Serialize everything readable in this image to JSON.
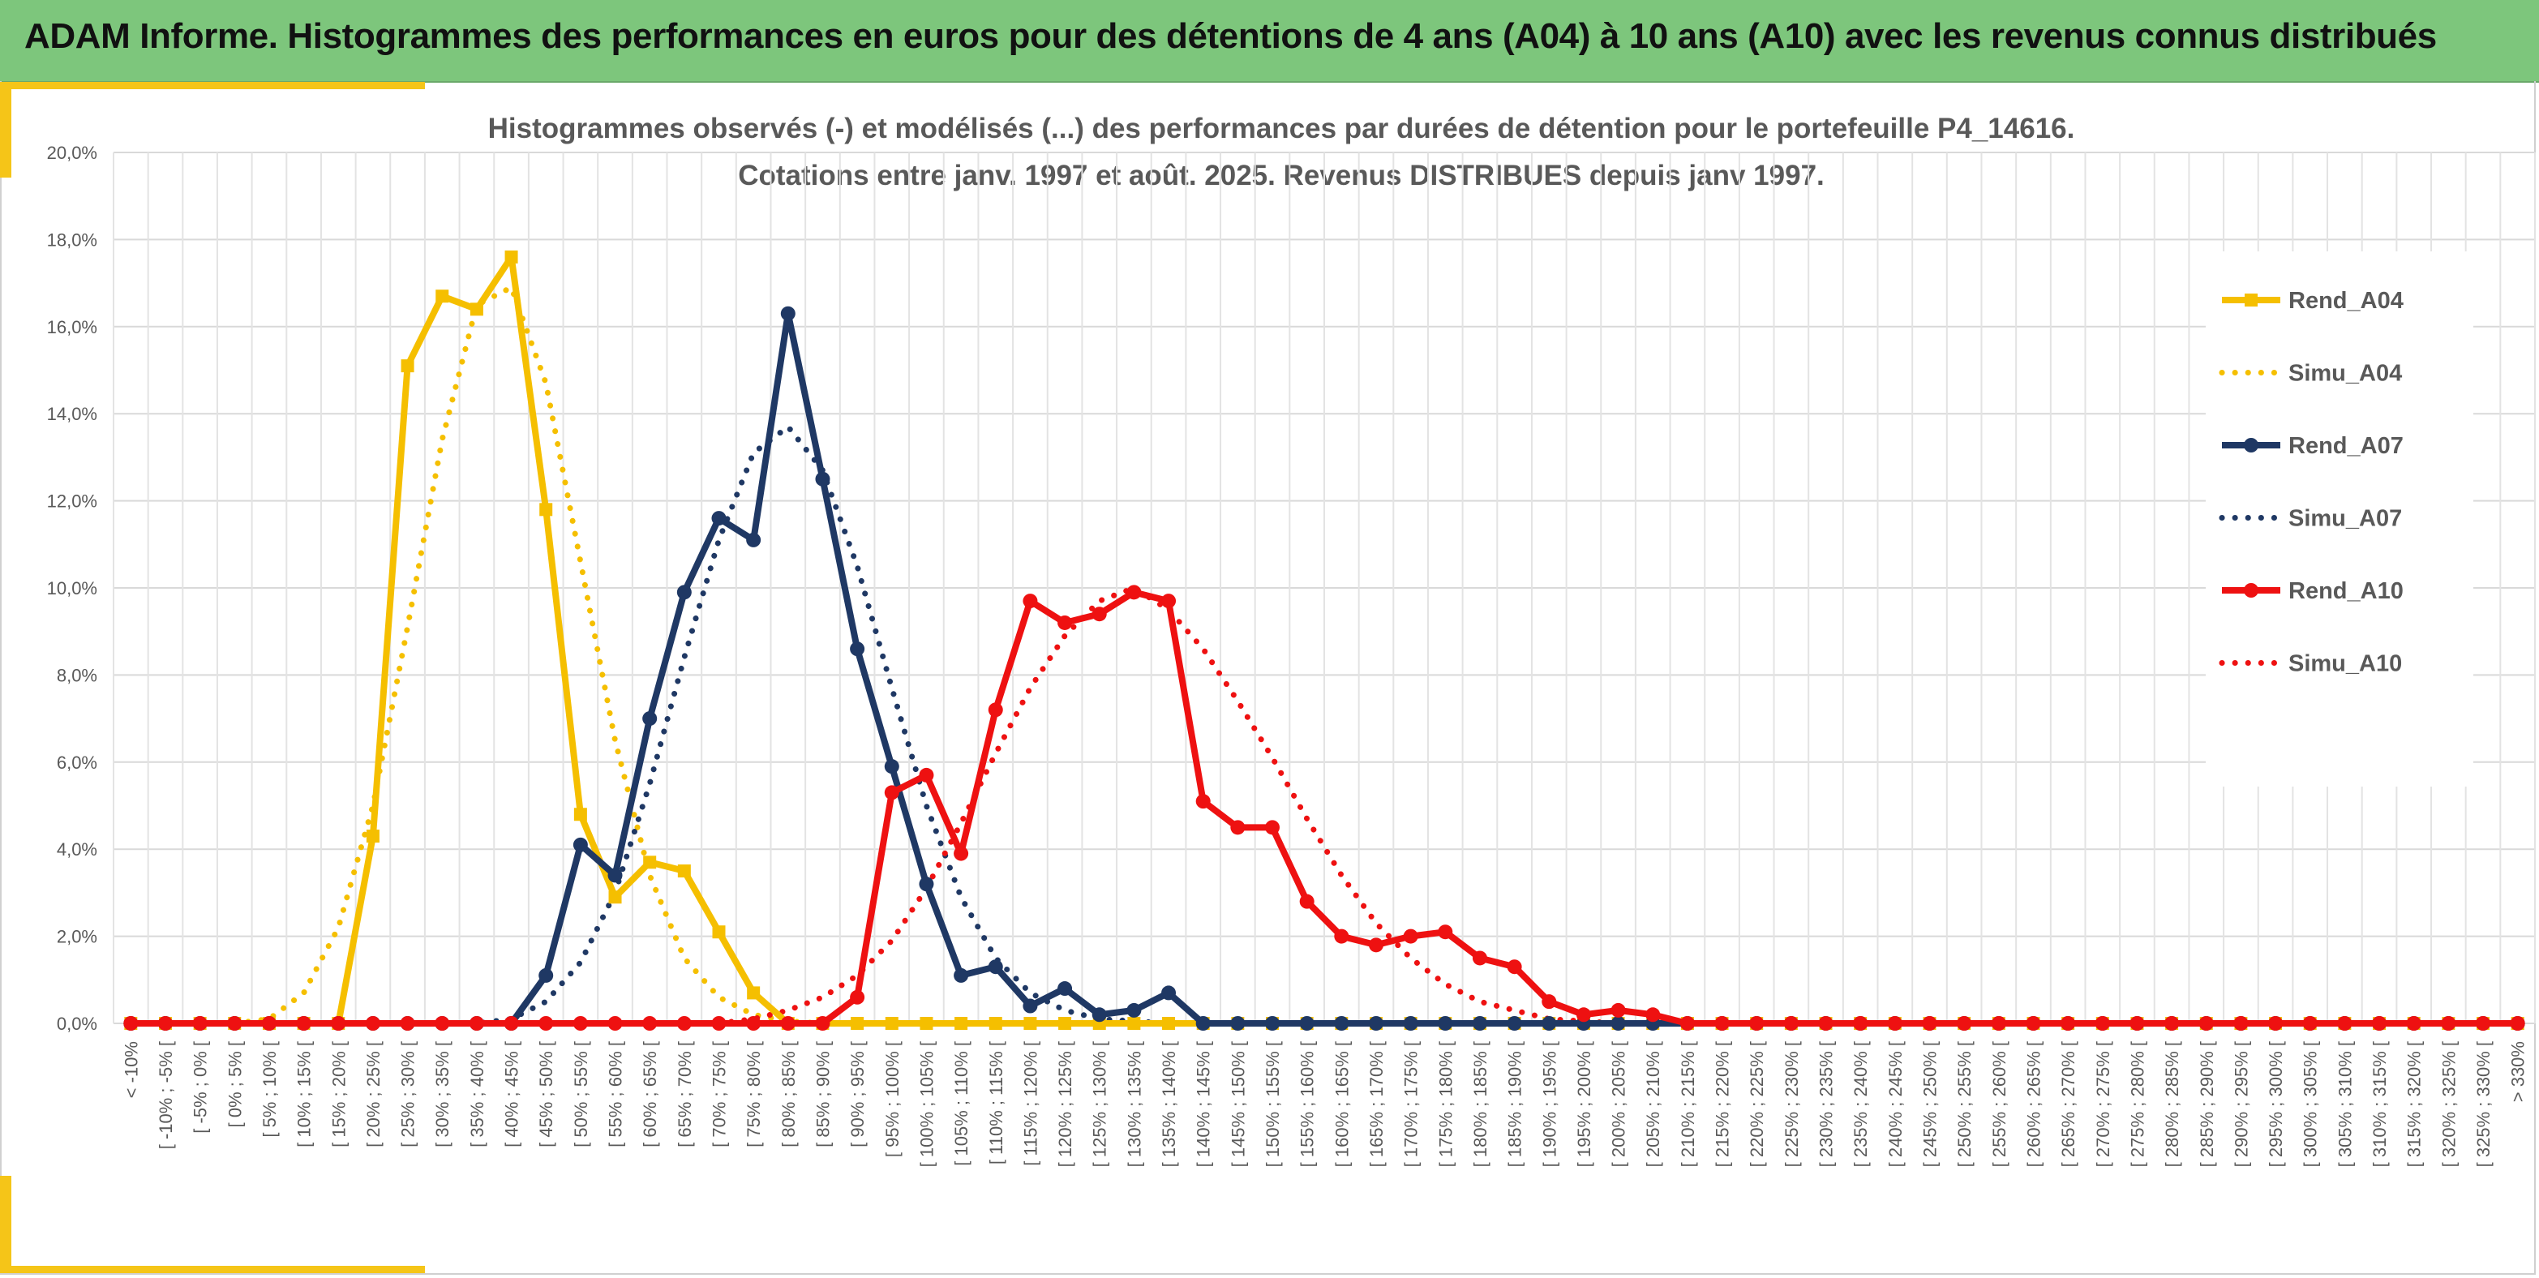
{
  "header": {
    "title": "ADAM Informe. Histogrammes des performances en euros pour des détentions de 4 ans (A04) à 10 ans (A10) avec les revenus connus distribués"
  },
  "colors": {
    "banner": "#7dc67c",
    "accent": "#f5c518",
    "gold": "#f5bf00",
    "navy": "#1f3864",
    "red": "#ee1111"
  },
  "chart_data": {
    "type": "line",
    "title_lines": [
      "Histogrammes observés (-) et modélisés (...) des performances par durées de détention pour le portefeuille P4_14616.",
      "Cotations entre janv. 1997 et août. 2025. Revenus DISTRIBUES depuis janv 1997."
    ],
    "xlabel": "",
    "ylabel": "",
    "ylim": [
      0,
      20
    ],
    "y_ticks": [
      "0,0%",
      "2,0%",
      "4,0%",
      "6,0%",
      "8,0%",
      "10,0%",
      "12,0%",
      "14,0%",
      "16,0%",
      "18,0%",
      "20,0%"
    ],
    "grid": true,
    "legend_position": "right",
    "categories": [
      "< -10%",
      "[ -10% ; -5% [",
      "[ -5% ; 0% [",
      "[ 0% ; 5% [",
      "[ 5% ; 10% [",
      "[ 10% ; 15% [",
      "[ 15% ; 20% [",
      "[ 20% ; 25% [",
      "[ 25% ; 30% [",
      "[ 30% ; 35% [",
      "[ 35% ; 40% [",
      "[ 40% ; 45% [",
      "[ 45% ; 50% [",
      "[ 50% ; 55% [",
      "[ 55% ; 60% [",
      "[ 60% ; 65% [",
      "[ 65% ; 70% [",
      "[ 70% ; 75% [",
      "[ 75% ; 80% [",
      "[ 80% ; 85% [",
      "[ 85% ; 90% [",
      "[ 90% ; 95% [",
      "[ 95% ; 100% [",
      "[ 100% ; 105% [",
      "[ 105% ; 110% [",
      "[ 110% ; 115% [",
      "[ 115% ; 120% [",
      "[ 120% ; 125% [",
      "[ 125% ; 130% [",
      "[ 130% ; 135% [",
      "[ 135% ; 140% [",
      "[ 140% ; 145% [",
      "[ 145% ; 150% [",
      "[ 150% ; 155% [",
      "[ 155% ; 160% [",
      "[ 160% ; 165% [",
      "[ 165% ; 170% [",
      "[ 170% ; 175% [",
      "[ 175% ; 180% [",
      "[ 180% ; 185% [",
      "[ 185% ; 190% [",
      "[ 190% ; 195% [",
      "[ 195% ; 200% [",
      "[ 200% ; 205% [",
      "[ 205% ; 210% [",
      "[ 210% ; 215% [",
      "[ 215% ; 220% [",
      "[ 220% ; 225% [",
      "[ 225% ; 230% [",
      "[ 230% ; 235% [",
      "[ 235% ; 240% [",
      "[ 240% ; 245% [",
      "[ 245% ; 250% [",
      "[ 250% ; 255% [",
      "[ 255% ; 260% [",
      "[ 260% ; 265% [",
      "[ 265% ; 270% [",
      "[ 270% ; 275% [",
      "[ 275% ; 280% [",
      "[ 280% ; 285% [",
      "[ 285% ; 290% [",
      "[ 290% ; 295% [",
      "[ 295% ; 300% [",
      "[ 300% ; 305% [",
      "[ 305% ; 310% [",
      "[ 310% ; 315% [",
      "[ 315% ; 320% [",
      "[ 320% ; 325% [",
      "[ 325% ; 330% [",
      "> 330%"
    ],
    "series": [
      {
        "name": "Rend_A04",
        "style": "solid",
        "marker": "square",
        "color": "#f5bf00",
        "values": [
          0,
          0,
          0,
          0,
          0,
          0,
          0,
          4.3,
          15.1,
          16.7,
          16.4,
          17.6,
          11.8,
          4.8,
          2.9,
          3.7,
          3.5,
          2.1,
          0.7,
          0,
          0,
          0,
          0,
          0,
          0,
          0,
          0,
          0,
          0,
          0,
          0,
          0,
          0,
          0,
          0,
          0,
          0,
          0,
          0,
          0,
          0,
          0,
          0,
          0,
          0,
          0,
          0,
          0,
          0,
          0,
          0,
          0,
          0,
          0,
          0,
          0,
          0,
          0,
          0,
          0,
          0,
          0,
          0,
          0,
          0,
          0,
          0,
          0,
          0,
          0
        ]
      },
      {
        "name": "Simu_A04",
        "style": "dotted",
        "marker": "none",
        "color": "#f5bf00",
        "values": [
          0,
          0,
          0,
          0,
          0.1,
          0.7,
          2.2,
          5.0,
          9.1,
          13.4,
          16.5,
          16.9,
          14.7,
          10.6,
          6.5,
          3.4,
          1.5,
          0.6,
          0.2,
          0.05,
          0,
          0,
          0,
          0,
          0,
          0,
          0,
          0,
          0,
          0,
          0,
          0,
          0,
          0,
          0,
          0,
          0,
          0,
          0,
          0,
          0,
          0,
          0,
          0,
          0,
          0,
          0,
          0,
          0,
          0,
          0,
          0,
          0,
          0,
          0,
          0,
          0,
          0,
          0,
          0,
          0,
          0,
          0,
          0,
          0,
          0,
          0,
          0,
          0,
          0
        ]
      },
      {
        "name": "Rend_A07",
        "style": "solid",
        "marker": "circle",
        "color": "#1f3864",
        "values": [
          0,
          0,
          0,
          0,
          0,
          0,
          0,
          0,
          0,
          0,
          0,
          0,
          1.1,
          4.1,
          3.4,
          7.0,
          9.9,
          11.6,
          11.1,
          16.3,
          12.5,
          8.6,
          5.9,
          3.2,
          1.1,
          1.3,
          0.4,
          0.8,
          0.2,
          0.3,
          0.7,
          0,
          0,
          0,
          0,
          0,
          0,
          0,
          0,
          0,
          0,
          0,
          0,
          0,
          0,
          0,
          0,
          0,
          0,
          0,
          0,
          0,
          0,
          0,
          0,
          0,
          0,
          0,
          0,
          0,
          0,
          0,
          0,
          0,
          0,
          0,
          0,
          0,
          0,
          0
        ]
      },
      {
        "name": "Simu_A07",
        "style": "dotted",
        "marker": "none",
        "color": "#1f3864",
        "values": [
          0,
          0,
          0,
          0,
          0,
          0,
          0,
          0,
          0,
          0,
          0,
          0.1,
          0.5,
          1.4,
          3.0,
          5.5,
          8.4,
          11.1,
          13.1,
          13.7,
          12.7,
          10.5,
          7.7,
          5.0,
          2.9,
          1.5,
          0.7,
          0.3,
          0.1,
          0.05,
          0,
          0,
          0,
          0,
          0,
          0,
          0,
          0,
          0,
          0,
          0,
          0,
          0,
          0,
          0,
          0,
          0,
          0,
          0,
          0,
          0,
          0,
          0,
          0,
          0,
          0,
          0,
          0,
          0,
          0,
          0,
          0,
          0,
          0,
          0,
          0,
          0,
          0,
          0,
          0
        ]
      },
      {
        "name": "Rend_A10",
        "style": "solid",
        "marker": "circle",
        "color": "#ee1111",
        "values": [
          0,
          0,
          0,
          0,
          0,
          0,
          0,
          0,
          0,
          0,
          0,
          0,
          0,
          0,
          0,
          0,
          0,
          0,
          0,
          0,
          0,
          0.6,
          5.3,
          5.7,
          3.9,
          7.2,
          9.7,
          9.2,
          9.4,
          9.9,
          9.7,
          5.1,
          4.5,
          4.5,
          2.8,
          2.0,
          1.8,
          2.0,
          2.1,
          1.5,
          1.3,
          0.5,
          0.2,
          0.3,
          0.2,
          0,
          0,
          0,
          0,
          0,
          0,
          0,
          0,
          0,
          0,
          0,
          0,
          0,
          0,
          0,
          0,
          0,
          0,
          0,
          0,
          0,
          0,
          0,
          0,
          0
        ]
      },
      {
        "name": "Simu_A10",
        "style": "dotted",
        "marker": "none",
        "color": "#ee1111",
        "values": [
          0,
          0,
          0,
          0,
          0,
          0,
          0,
          0,
          0,
          0,
          0,
          0,
          0,
          0,
          0,
          0,
          0,
          0,
          0.1,
          0.3,
          0.6,
          1.1,
          1.9,
          3.1,
          4.6,
          6.2,
          7.7,
          8.9,
          9.7,
          10.0,
          9.5,
          8.6,
          7.4,
          6.1,
          4.7,
          3.4,
          2.3,
          1.5,
          0.9,
          0.5,
          0.3,
          0.1,
          0.05,
          0,
          0,
          0,
          0,
          0,
          0,
          0,
          0,
          0,
          0,
          0,
          0,
          0,
          0,
          0,
          0,
          0,
          0,
          0,
          0,
          0,
          0,
          0,
          0,
          0,
          0,
          0
        ]
      }
    ]
  }
}
